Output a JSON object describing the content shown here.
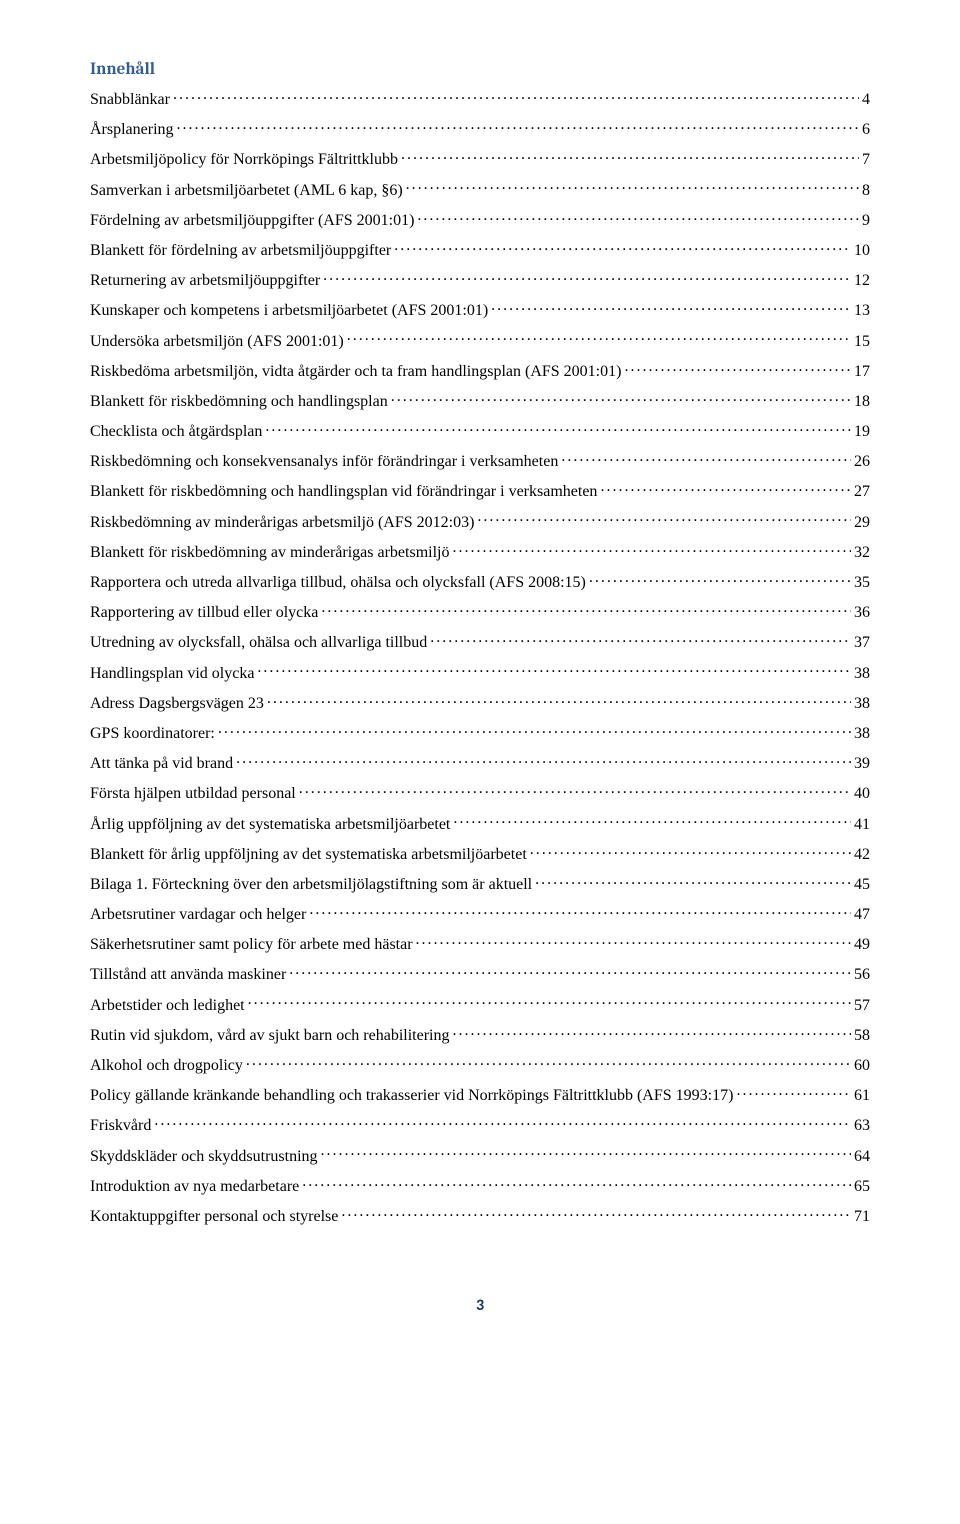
{
  "heading": "Innehåll",
  "pageNumber": "3",
  "pageNumberColor": "#17365d",
  "headingColor": "#365f91",
  "entries": [
    {
      "label": "Snabblänkar",
      "page": "4"
    },
    {
      "label": "Årsplanering",
      "page": "6"
    },
    {
      "label": "Arbetsmiljöpolicy för Norrköpings Fältrittklubb",
      "page": "7"
    },
    {
      "label": "Samverkan i arbetsmiljöarbetet (AML 6 kap, §6)",
      "page": "8"
    },
    {
      "label": "Fördelning av arbetsmiljöuppgifter (AFS 2001:01)",
      "page": "9"
    },
    {
      "label": "Blankett för fördelning av arbetsmiljöuppgifter",
      "page": "10"
    },
    {
      "label": "Returnering av arbetsmiljöuppgifter",
      "page": "12"
    },
    {
      "label": "Kunskaper och kompetens i arbetsmiljöarbetet (AFS 2001:01)",
      "page": "13"
    },
    {
      "label": "Undersöka arbetsmiljön (AFS 2001:01)",
      "page": "15"
    },
    {
      "label": "Riskbedöma arbetsmiljön, vidta åtgärder och ta fram handlingsplan (AFS 2001:01)",
      "page": "17"
    },
    {
      "label": "Blankett för riskbedömning och handlingsplan",
      "page": "18"
    },
    {
      "label": "Checklista och åtgärdsplan",
      "page": "19"
    },
    {
      "label": "Riskbedömning och konsekvensanalys inför förändringar i verksamheten",
      "page": "26"
    },
    {
      "label": "Blankett för riskbedömning och handlingsplan vid förändringar i verksamheten",
      "page": "27"
    },
    {
      "label": "Riskbedömning av minderårigas arbetsmiljö (AFS 2012:03)",
      "page": "29"
    },
    {
      "label": "Blankett för riskbedömning av minderårigas arbetsmiljö",
      "page": "32"
    },
    {
      "label": "Rapportera och utreda allvarliga tillbud, ohälsa och olycksfall (AFS 2008:15)",
      "page": "35"
    },
    {
      "label": "Rapportering av tillbud eller olycka",
      "page": "36"
    },
    {
      "label": "Utredning av olycksfall, ohälsa och allvarliga tillbud",
      "page": "37"
    },
    {
      "label": "Handlingsplan vid olycka",
      "page": "38"
    },
    {
      "label": "Adress Dagsbergsvägen 23",
      "page": "38"
    },
    {
      "label": "GPS koordinatorer:",
      "page": "38"
    },
    {
      "label": "Att tänka på vid brand",
      "page": "39"
    },
    {
      "label": "Första hjälpen utbildad personal",
      "page": "40"
    },
    {
      "label": "Årlig uppföljning av det systematiska arbetsmiljöarbetet",
      "page": "41"
    },
    {
      "label": "Blankett för årlig uppföljning av det systematiska arbetsmiljöarbetet",
      "page": "42"
    },
    {
      "label": "Bilaga 1. Förteckning över den arbetsmiljölagstiftning som är aktuell",
      "page": "45"
    },
    {
      "label": "Arbetsrutiner vardagar och helger",
      "page": "47"
    },
    {
      "label": "Säkerhetsrutiner samt policy för arbete med hästar",
      "page": "49"
    },
    {
      "label": "Tillstånd att använda maskiner",
      "page": "56"
    },
    {
      "label": "Arbetstider och ledighet",
      "page": "57"
    },
    {
      "label": "Rutin vid sjukdom, vård av sjukt barn och rehabilitering",
      "page": "58"
    },
    {
      "label": "Alkohol och drogpolicy",
      "page": "60"
    },
    {
      "label": "Policy gällande kränkande behandling och trakasserier vid Norrköpings Fältrittklubb (AFS 1993:17)",
      "page": "61"
    },
    {
      "label": "Friskvård",
      "page": "63"
    },
    {
      "label": "Skyddskläder och skyddsutrustning",
      "page": "64"
    },
    {
      "label": "Introduktion av nya medarbetare",
      "page": "65"
    },
    {
      "label": "Kontaktuppgifter personal och styrelse",
      "page": "71"
    }
  ]
}
